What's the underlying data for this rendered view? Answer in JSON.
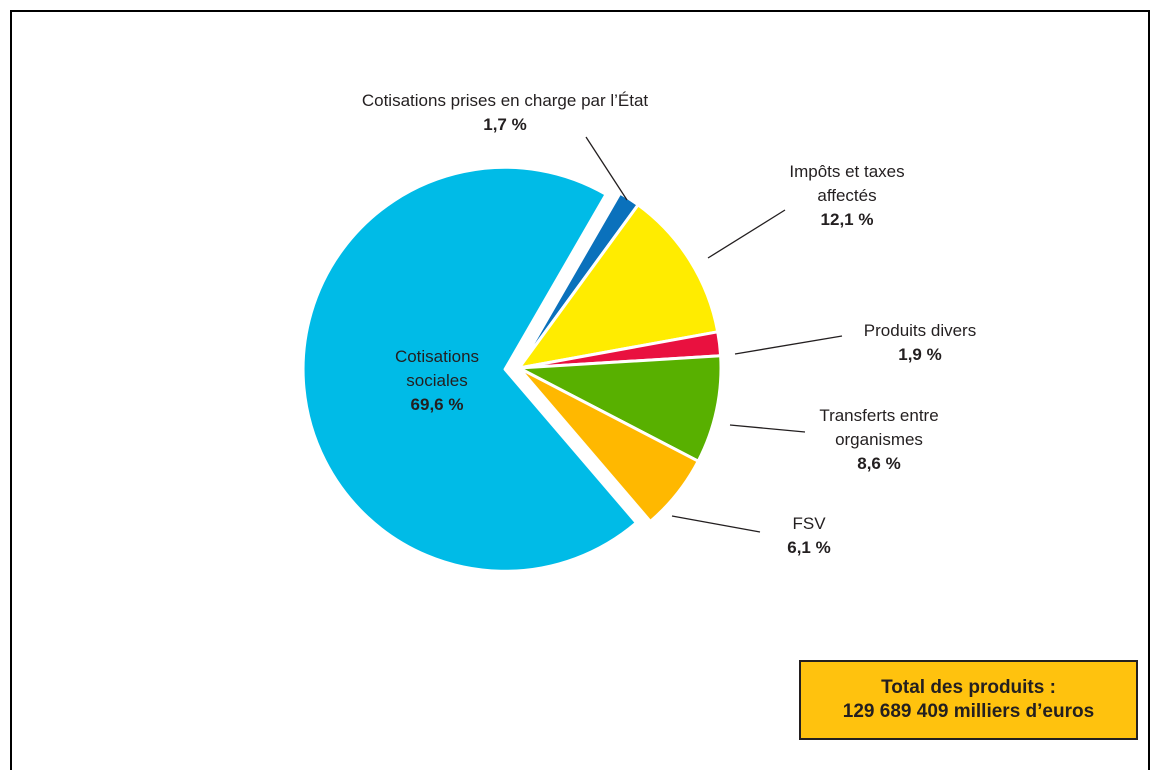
{
  "chart_data": {
    "type": "pie",
    "slices": [
      {
        "label": "Cotisations sociales",
        "value": 69.6,
        "value_text": "69,6 %",
        "color": "#00bbe7",
        "exploded": true
      },
      {
        "label": "Cotisations prises en charge par l’État",
        "value": 1.7,
        "value_text": "1,7 %",
        "color": "#0a71bc",
        "exploded": false
      },
      {
        "label": "Impôts et taxes affectés",
        "value": 12.1,
        "value_text": "12,1 %",
        "color": "#ffec00",
        "exploded": false
      },
      {
        "label": "Produits divers",
        "value": 1.9,
        "value_text": "1,9 %",
        "color": "#e9113f",
        "exploded": false
      },
      {
        "label": "Transferts entre organismes",
        "value": 8.6,
        "value_text": "8,6 %",
        "color": "#58b000",
        "exploded": false
      },
      {
        "label": "FSV",
        "value": 6.1,
        "value_text": "6,1 %",
        "color": "#ffb800",
        "exploded": false
      }
    ],
    "label_lines": [
      [
        "Cotisations",
        "sociales"
      ],
      [
        "Cotisations prises en charge par l’État"
      ],
      [
        "Impôts et taxes",
        "affectés"
      ],
      [
        "Produits divers"
      ],
      [
        "Transferts entre",
        "organismes"
      ],
      [
        "FSV"
      ]
    ]
  },
  "total": {
    "line1": "Total des produits :",
    "line2": "129 689 409 milliers d’euros"
  }
}
